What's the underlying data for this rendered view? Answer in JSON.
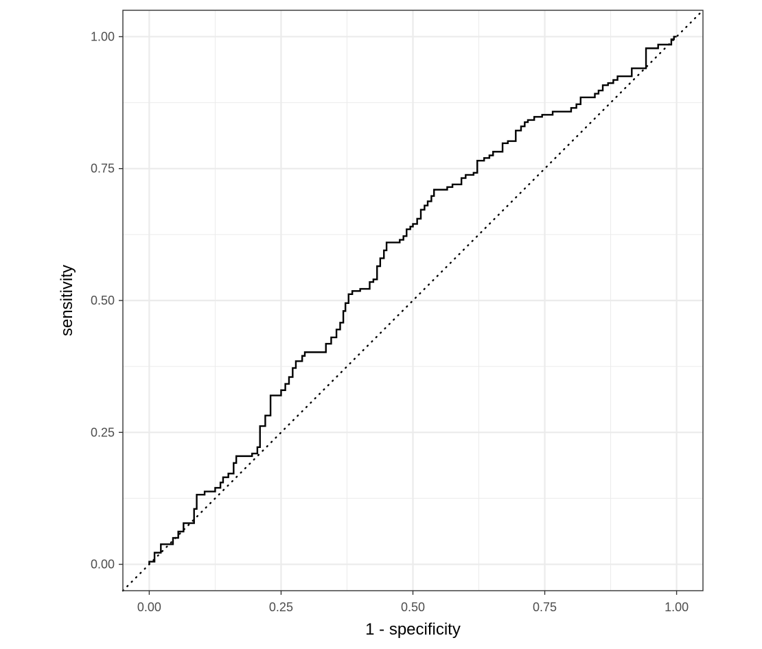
{
  "chart_data": {
    "type": "line",
    "title": "",
    "xlabel": "1 - specificity",
    "ylabel": "sensitivity",
    "xlim": [
      -0.05,
      1.05
    ],
    "ylim": [
      -0.05,
      1.05
    ],
    "x_ticks": [
      0,
      0.25,
      0.5,
      0.75,
      1
    ],
    "y_ticks": [
      0,
      0.25,
      0.5,
      0.75,
      1
    ],
    "x_tick_labels": [
      "0.00",
      "0.25",
      "0.50",
      "0.75",
      "1.00"
    ],
    "y_tick_labels": [
      "0.00",
      "0.25",
      "0.50",
      "0.75",
      "1.00"
    ],
    "grid": true,
    "legend": "none",
    "colors": {
      "curve": "#000000",
      "grid": "#ebebeb",
      "panel_border": "#333333",
      "tick_label": "#4d4d4d"
    },
    "series": [
      {
        "style": "step",
        "points": [
          [
            0.0,
            0.0
          ],
          [
            0.0,
            0.005
          ],
          [
            0.01,
            0.005
          ],
          [
            0.01,
            0.022
          ],
          [
            0.022,
            0.022
          ],
          [
            0.022,
            0.038
          ],
          [
            0.045,
            0.038
          ],
          [
            0.045,
            0.05
          ],
          [
            0.055,
            0.05
          ],
          [
            0.055,
            0.062
          ],
          [
            0.065,
            0.062
          ],
          [
            0.065,
            0.078
          ],
          [
            0.085,
            0.078
          ],
          [
            0.085,
            0.105
          ],
          [
            0.09,
            0.105
          ],
          [
            0.09,
            0.132
          ],
          [
            0.105,
            0.132
          ],
          [
            0.105,
            0.138
          ],
          [
            0.125,
            0.138
          ],
          [
            0.125,
            0.145
          ],
          [
            0.135,
            0.145
          ],
          [
            0.135,
            0.155
          ],
          [
            0.14,
            0.155
          ],
          [
            0.14,
            0.165
          ],
          [
            0.15,
            0.165
          ],
          [
            0.15,
            0.172
          ],
          [
            0.16,
            0.172
          ],
          [
            0.16,
            0.192
          ],
          [
            0.165,
            0.192
          ],
          [
            0.165,
            0.205
          ],
          [
            0.195,
            0.205
          ],
          [
            0.195,
            0.21
          ],
          [
            0.205,
            0.21
          ],
          [
            0.205,
            0.222
          ],
          [
            0.21,
            0.222
          ],
          [
            0.21,
            0.262
          ],
          [
            0.22,
            0.262
          ],
          [
            0.22,
            0.282
          ],
          [
            0.23,
            0.282
          ],
          [
            0.23,
            0.32
          ],
          [
            0.25,
            0.32
          ],
          [
            0.25,
            0.33
          ],
          [
            0.258,
            0.33
          ],
          [
            0.258,
            0.342
          ],
          [
            0.265,
            0.342
          ],
          [
            0.265,
            0.355
          ],
          [
            0.272,
            0.355
          ],
          [
            0.272,
            0.372
          ],
          [
            0.278,
            0.372
          ],
          [
            0.278,
            0.385
          ],
          [
            0.29,
            0.385
          ],
          [
            0.29,
            0.395
          ],
          [
            0.295,
            0.395
          ],
          [
            0.295,
            0.402
          ],
          [
            0.335,
            0.402
          ],
          [
            0.335,
            0.418
          ],
          [
            0.345,
            0.418
          ],
          [
            0.345,
            0.43
          ],
          [
            0.355,
            0.43
          ],
          [
            0.355,
            0.445
          ],
          [
            0.362,
            0.445
          ],
          [
            0.362,
            0.458
          ],
          [
            0.368,
            0.458
          ],
          [
            0.368,
            0.48
          ],
          [
            0.372,
            0.48
          ],
          [
            0.372,
            0.495
          ],
          [
            0.378,
            0.495
          ],
          [
            0.378,
            0.512
          ],
          [
            0.385,
            0.512
          ],
          [
            0.385,
            0.518
          ],
          [
            0.4,
            0.518
          ],
          [
            0.4,
            0.522
          ],
          [
            0.418,
            0.522
          ],
          [
            0.418,
            0.535
          ],
          [
            0.425,
            0.535
          ],
          [
            0.425,
            0.54
          ],
          [
            0.432,
            0.54
          ],
          [
            0.432,
            0.565
          ],
          [
            0.438,
            0.565
          ],
          [
            0.438,
            0.58
          ],
          [
            0.445,
            0.58
          ],
          [
            0.445,
            0.595
          ],
          [
            0.45,
            0.595
          ],
          [
            0.45,
            0.61
          ],
          [
            0.475,
            0.61
          ],
          [
            0.475,
            0.615
          ],
          [
            0.482,
            0.615
          ],
          [
            0.482,
            0.622
          ],
          [
            0.488,
            0.622
          ],
          [
            0.488,
            0.635
          ],
          [
            0.495,
            0.635
          ],
          [
            0.495,
            0.64
          ],
          [
            0.5,
            0.64
          ],
          [
            0.5,
            0.645
          ],
          [
            0.508,
            0.645
          ],
          [
            0.508,
            0.655
          ],
          [
            0.515,
            0.655
          ],
          [
            0.515,
            0.672
          ],
          [
            0.522,
            0.672
          ],
          [
            0.522,
            0.68
          ],
          [
            0.528,
            0.68
          ],
          [
            0.528,
            0.688
          ],
          [
            0.535,
            0.688
          ],
          [
            0.535,
            0.698
          ],
          [
            0.54,
            0.698
          ],
          [
            0.54,
            0.71
          ],
          [
            0.565,
            0.71
          ],
          [
            0.565,
            0.715
          ],
          [
            0.575,
            0.715
          ],
          [
            0.575,
            0.72
          ],
          [
            0.592,
            0.72
          ],
          [
            0.592,
            0.732
          ],
          [
            0.6,
            0.732
          ],
          [
            0.6,
            0.738
          ],
          [
            0.615,
            0.738
          ],
          [
            0.615,
            0.742
          ],
          [
            0.622,
            0.742
          ],
          [
            0.622,
            0.765
          ],
          [
            0.635,
            0.765
          ],
          [
            0.635,
            0.77
          ],
          [
            0.645,
            0.77
          ],
          [
            0.645,
            0.775
          ],
          [
            0.652,
            0.775
          ],
          [
            0.652,
            0.782
          ],
          [
            0.67,
            0.782
          ],
          [
            0.67,
            0.798
          ],
          [
            0.68,
            0.798
          ],
          [
            0.68,
            0.802
          ],
          [
            0.695,
            0.802
          ],
          [
            0.695,
            0.822
          ],
          [
            0.705,
            0.822
          ],
          [
            0.705,
            0.83
          ],
          [
            0.712,
            0.83
          ],
          [
            0.712,
            0.838
          ],
          [
            0.718,
            0.838
          ],
          [
            0.718,
            0.842
          ],
          [
            0.73,
            0.842
          ],
          [
            0.73,
            0.848
          ],
          [
            0.745,
            0.848
          ],
          [
            0.745,
            0.852
          ],
          [
            0.765,
            0.852
          ],
          [
            0.765,
            0.858
          ],
          [
            0.8,
            0.858
          ],
          [
            0.8,
            0.865
          ],
          [
            0.81,
            0.865
          ],
          [
            0.81,
            0.872
          ],
          [
            0.818,
            0.872
          ],
          [
            0.818,
            0.885
          ],
          [
            0.845,
            0.885
          ],
          [
            0.845,
            0.892
          ],
          [
            0.852,
            0.892
          ],
          [
            0.852,
            0.898
          ],
          [
            0.86,
            0.898
          ],
          [
            0.86,
            0.908
          ],
          [
            0.87,
            0.908
          ],
          [
            0.87,
            0.912
          ],
          [
            0.88,
            0.912
          ],
          [
            0.88,
            0.918
          ],
          [
            0.888,
            0.918
          ],
          [
            0.888,
            0.925
          ],
          [
            0.915,
            0.925
          ],
          [
            0.915,
            0.94
          ],
          [
            0.942,
            0.94
          ],
          [
            0.942,
            0.978
          ],
          [
            0.965,
            0.978
          ],
          [
            0.965,
            0.985
          ],
          [
            0.99,
            0.985
          ],
          [
            0.99,
            0.995
          ],
          [
            0.995,
            0.995
          ],
          [
            0.995,
            1.0
          ],
          [
            1.0,
            1.0
          ]
        ]
      },
      {
        "style": "dotted-diagonal",
        "points": [
          [
            -0.05,
            -0.05
          ],
          [
            1.05,
            1.05
          ]
        ]
      }
    ]
  }
}
